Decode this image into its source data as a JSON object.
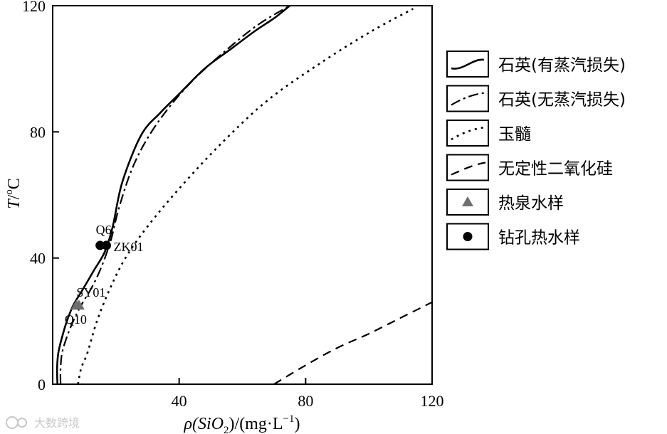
{
  "chart_data": {
    "type": "line",
    "xlabel": {
      "prefix": "ρ(SiO",
      "sub": "2",
      "mid": ")/(mg·L",
      "sup": "−1",
      "suffix": ")"
    },
    "ylabel": {
      "italic": "T",
      "slash": "/",
      "sup": "o",
      "suffix": "C"
    },
    "xlim": [
      0,
      120
    ],
    "ylim": [
      0,
      120
    ],
    "xticks": [
      "40",
      "80",
      "120"
    ],
    "yticks": [
      "0",
      "40",
      "80",
      "120"
    ],
    "grid": false,
    "legend_position": "right",
    "series": [
      {
        "name": "石英(有蒸汽损失)",
        "style": "solid",
        "x": [
          1.5,
          1.4,
          1.8,
          3,
          4.5,
          6.5,
          9.5,
          13,
          16.5,
          19,
          22,
          28,
          34,
          40,
          48,
          56,
          64,
          70,
          75
        ],
        "y": [
          0,
          5,
          10,
          15,
          20,
          25,
          30,
          36,
          42,
          50,
          64,
          79,
          86,
          92,
          100,
          106,
          112,
          116,
          120
        ]
      },
      {
        "name": "石英(无蒸汽损失)",
        "style": "dashdot",
        "x": [
          2.5,
          2.5,
          3,
          4.5,
          6.5,
          9,
          12,
          14.5,
          16.5,
          18.5,
          21,
          25,
          30,
          37,
          45,
          55,
          65,
          75
        ],
        "y": [
          0,
          5,
          10,
          15,
          20,
          25,
          30,
          35,
          40,
          46,
          56,
          68,
          78,
          88,
          97,
          106,
          114,
          120
        ]
      },
      {
        "name": "玉髓",
        "style": "dotted",
        "x": [
          8,
          9,
          11,
          14,
          18,
          23,
          30,
          40,
          53,
          68,
          85,
          101,
          114
        ],
        "y": [
          0,
          5,
          10,
          20,
          30,
          40,
          50,
          62,
          76,
          90,
          102,
          112,
          119
        ]
      },
      {
        "name": "无定性二氧化硅",
        "style": "dashed",
        "x": [
          70,
          80,
          90,
          100,
          110,
          120
        ],
        "y": [
          0,
          6,
          11.5,
          16,
          21,
          26
        ]
      }
    ],
    "points": [
      {
        "name": "热泉水样",
        "marker": "triangle",
        "color": "#6e6e6e",
        "x": [
          7.5,
          8.3
        ],
        "y": [
          25,
          25
        ],
        "labels": [
          {
            "text": "SY01",
            "dx": 0,
            "dy": -12
          },
          {
            "text": "Q10",
            "dx": -20,
            "dy": 26
          }
        ]
      },
      {
        "name": "钻孔热水样",
        "marker": "circle",
        "color": "#000000",
        "x": [
          15,
          17
        ],
        "y": [
          44,
          44
        ],
        "labels": [
          {
            "text": "Q6",
            "dx": -6,
            "dy": -16
          },
          {
            "text": "ZK01",
            "dx": 10,
            "dy": 8
          }
        ]
      }
    ]
  },
  "watermark": "大数跨境"
}
